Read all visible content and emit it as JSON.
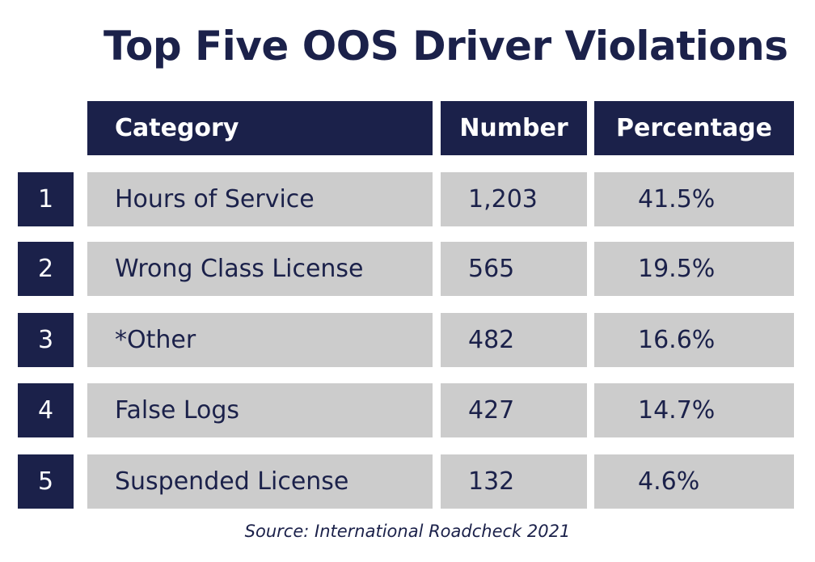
{
  "title": "Top Five OOS Driver Violations",
  "source": "Source: International Roadcheck 2021",
  "colors": {
    "navy": "#1b214a",
    "gray": "#cccccc",
    "white": "#ffffff"
  },
  "chart_data": {
    "type": "table",
    "title": "Top Five OOS Driver Violations",
    "columns": [
      "Category",
      "Number",
      "Percentage"
    ],
    "rows": [
      {
        "rank": "1",
        "category": "Hours of Service",
        "number": "1,203",
        "percentage": "41.5%"
      },
      {
        "rank": "2",
        "category": "Wrong Class License",
        "number": "565",
        "percentage": "19.5%"
      },
      {
        "rank": "3",
        "category": "*Other",
        "number": "482",
        "percentage": "16.6%"
      },
      {
        "rank": "4",
        "category": "False Logs",
        "number": "427",
        "percentage": "14.7%"
      },
      {
        "rank": "5",
        "category": "Suspended License",
        "number": "132",
        "percentage": "4.6%"
      }
    ],
    "source": "Source: International Roadcheck 2021"
  }
}
